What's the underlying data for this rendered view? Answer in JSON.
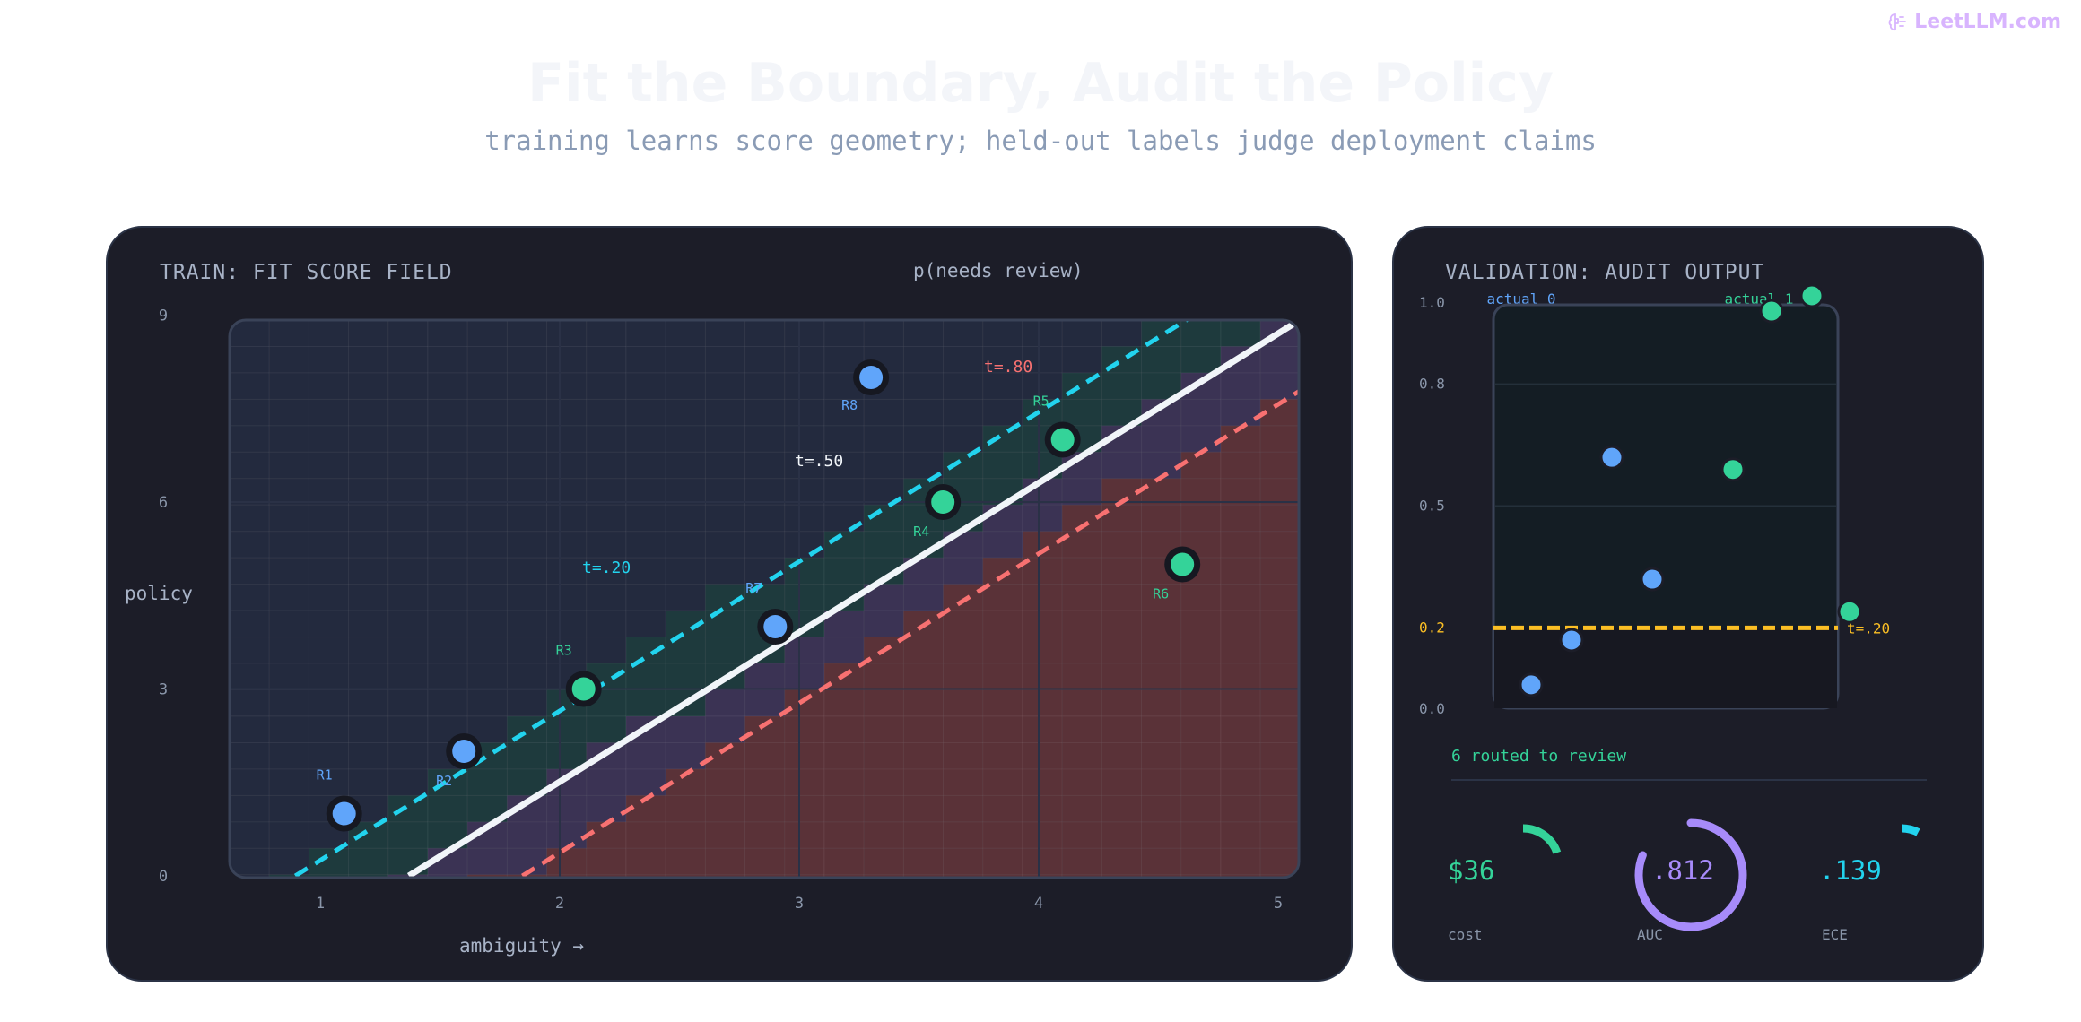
{
  "brand": {
    "label": "LeetLLM.com",
    "icon": "brain-icon"
  },
  "header": {
    "title": "Fit the Boundary, Audit the Policy",
    "subtitle": "training learns score geometry; held-out labels judge deployment claims"
  },
  "train": {
    "heading": "TRAIN: FIT SCORE FIELD",
    "field_label": "p(needs review)",
    "y_axis_label": "policy",
    "x_axis_label": "ambiguity →",
    "x_ticks": [
      "1",
      "2",
      "3",
      "4",
      "5"
    ],
    "y_ticks": [
      "0",
      "3",
      "6",
      "9"
    ],
    "thresholds": [
      {
        "label": "t=.20",
        "value": 0.2,
        "color": "#22d3ee"
      },
      {
        "label": "t=.50",
        "value": 0.5,
        "color": "#f1f5f9"
      },
      {
        "label": "t=.80",
        "value": 0.8,
        "color": "#f87171"
      }
    ],
    "points": [
      {
        "label": "R1",
        "ambiguity": 1.1,
        "policy": 1.0,
        "actual": 0
      },
      {
        "label": "R2",
        "ambiguity": 1.6,
        "policy": 2.0,
        "actual": 0
      },
      {
        "label": "R3",
        "ambiguity": 2.1,
        "policy": 3.0,
        "actual": 1
      },
      {
        "label": "R7",
        "ambiguity": 2.9,
        "policy": 4.0,
        "actual": 0
      },
      {
        "label": "R4",
        "ambiguity": 3.6,
        "policy": 6.0,
        "actual": 1
      },
      {
        "label": "R8",
        "ambiguity": 3.3,
        "policy": 8.0,
        "actual": 0
      },
      {
        "label": "R5",
        "ambiguity": 4.1,
        "policy": 7.0,
        "actual": 1
      },
      {
        "label": "R6",
        "ambiguity": 4.6,
        "policy": 5.0,
        "actual": 1
      }
    ]
  },
  "validation": {
    "heading": "VALIDATION: AUDIT OUTPUT",
    "class_labels": [
      "actual 0",
      "actual 1"
    ],
    "y_ticks": [
      "1.0",
      "0.8",
      "0.5",
      "0.2",
      "0.0"
    ],
    "threshold": {
      "label": "t=.20",
      "value": 0.2
    },
    "actual0_scores": [
      0.62,
      0.32,
      0.17,
      0.06
    ],
    "actual1_scores": [
      0.98,
      1.0,
      0.59,
      0.24
    ],
    "routed_text": "6 routed to review",
    "metrics": [
      {
        "value": "$36",
        "label": "cost",
        "fraction": 0.36,
        "color": "#34d399"
      },
      {
        "value": ".812",
        "label": "AUC",
        "fraction": 0.812,
        "color": "#a78bfa"
      },
      {
        "value": ".139",
        "label": "ECE",
        "fraction": 0.139,
        "color": "#22d3ee"
      }
    ]
  },
  "colors": {
    "actual0": "#60a5fa",
    "actual1": "#34d399",
    "threshold_val": "#fbbf24",
    "panel_bg": "#1c1d28"
  }
}
